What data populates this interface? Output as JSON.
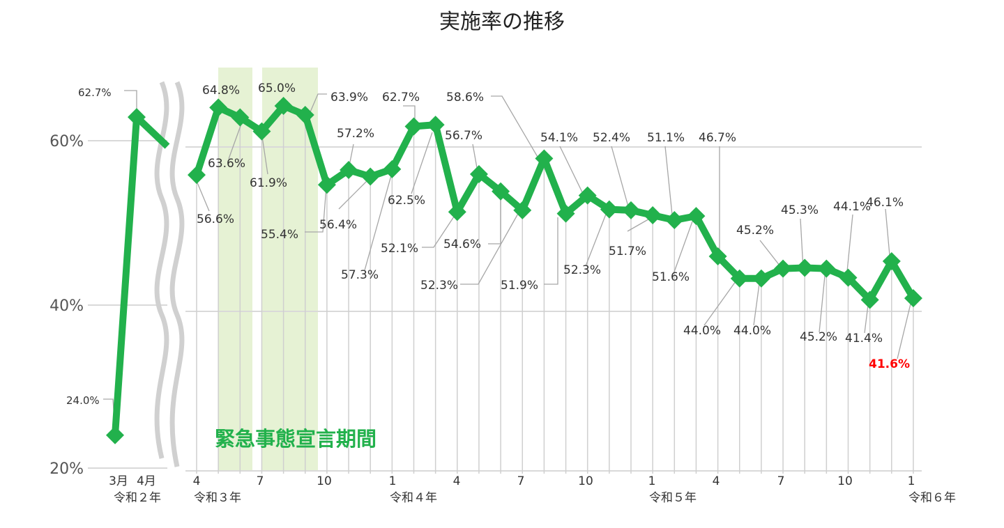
{
  "chart_data": {
    "type": "line",
    "title": "実施率の推移",
    "yticks": [
      "60%",
      "40%",
      "20%"
    ],
    "ylim": [
      20,
      66
    ],
    "series": [
      {
        "values": [
          24.0,
          62.7,
          56.6,
          64.8,
          63.6,
          61.9,
          65.0,
          63.9,
          55.4,
          57.2,
          56.4,
          57.3,
          62.5,
          62.7,
          52.1,
          56.7,
          54.6,
          52.3,
          58.6,
          51.9,
          54.1,
          52.4,
          52.3,
          51.7,
          51.1,
          51.6,
          46.7,
          44.0,
          44.0,
          45.2,
          45.3,
          45.2,
          44.1,
          41.4,
          46.1,
          41.6
        ],
        "labels": [
          "24.0%",
          "62.7%",
          "56.6%",
          "64.8%",
          "63.6%",
          "61.9%",
          "65.0%",
          "63.9%",
          "55.4%",
          "57.2%",
          "56.4%",
          "57.3%",
          "62.5%",
          "62.7%",
          "52.1%",
          "56.7%",
          "54.6%",
          "52.3%",
          "58.6%",
          "51.9%",
          "54.1%",
          "52.4%",
          "52.3%",
          "51.7%",
          "51.1%",
          "51.6%",
          "46.7%",
          "44.0%",
          "44.0%",
          "45.2%",
          "45.3%",
          "45.2%",
          "44.1%",
          "41.4%",
          "46.1%",
          "41.6%"
        ],
        "color": "#22b14c"
      }
    ],
    "x_tick_labels": [
      {
        "month": "3月",
        "era": "令和２年"
      },
      {
        "month": "4月",
        "era": ""
      },
      {
        "month": "4",
        "era": "令和３年"
      },
      {
        "month": "7",
        "era": ""
      },
      {
        "month": "10",
        "era": ""
      },
      {
        "month": "1",
        "era": "令和４年"
      },
      {
        "month": "4",
        "era": ""
      },
      {
        "month": "7",
        "era": ""
      },
      {
        "month": "10",
        "era": ""
      },
      {
        "month": "1",
        "era": "令和５年"
      },
      {
        "month": "4",
        "era": ""
      },
      {
        "month": "7",
        "era": ""
      },
      {
        "month": "10",
        "era": ""
      },
      {
        "month": "1",
        "era": "令和６年"
      }
    ],
    "highlight_label": "緊急事態宣言期間",
    "highlight_color": "#e6f2d4",
    "latest_label_color": "#ff0000",
    "grid": true,
    "axis_break": true
  }
}
